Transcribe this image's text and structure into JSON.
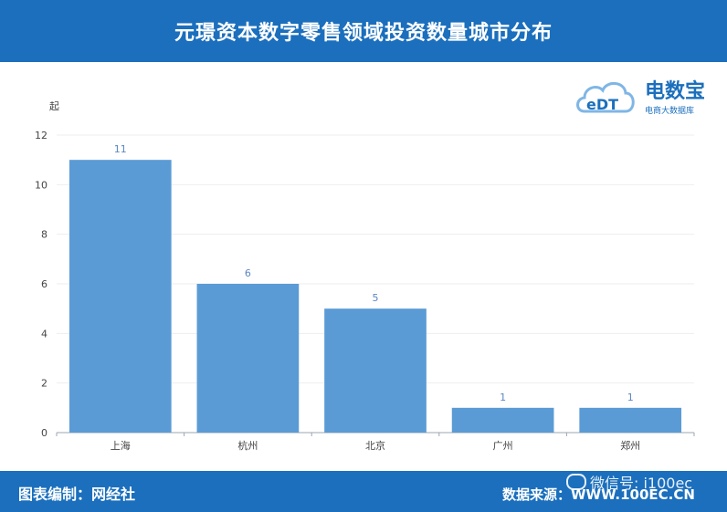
{
  "header": {
    "title": "元璟资本数字零售领域投资数量城市分布"
  },
  "logo": {
    "brand": "电数宝",
    "tagline": "电商大数据库",
    "mark": "eDT"
  },
  "footer": {
    "left": "图表编制：网经社",
    "right": "数据来源：WWW.100EC.CN",
    "wechat": "微信号: i100ec"
  },
  "colors": {
    "header_bg": "#1b6fbd",
    "bar": "#5b9bd5",
    "label": "#5b87c5"
  },
  "chart_data": {
    "type": "bar",
    "categories": [
      "上海",
      "杭州",
      "北京",
      "广州",
      "郑州"
    ],
    "values": [
      11,
      6,
      5,
      1,
      1
    ],
    "ylabel": "起",
    "ylim": [
      0,
      12
    ],
    "yticks": [
      0,
      2,
      4,
      6,
      8,
      10,
      12
    ],
    "grid": true
  }
}
